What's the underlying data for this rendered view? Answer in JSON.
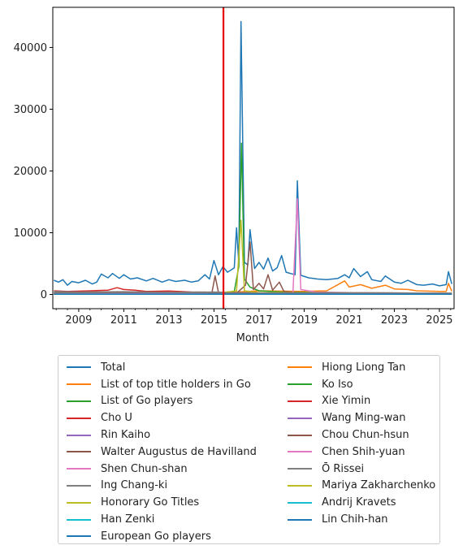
{
  "chart_data": {
    "type": "line",
    "xlabel": "Month",
    "ylabel": "",
    "title": "",
    "xlim": [
      2007.85,
      2025.65
    ],
    "ylim": [
      -2300,
      46500
    ],
    "x_ticks": [
      2009,
      2011,
      2013,
      2015,
      2017,
      2019,
      2021,
      2023,
      2025
    ],
    "y_ticks": [
      0,
      10000,
      20000,
      30000,
      40000
    ],
    "vline": {
      "x": 2015.42,
      "color": "#e60000"
    },
    "legend_placement": "below",
    "series": [
      {
        "name": "Total",
        "color": "#1f77b4",
        "points": [
          [
            2007.9,
            2300
          ],
          [
            2008.1,
            2000
          ],
          [
            2008.3,
            2400
          ],
          [
            2008.5,
            1500
          ],
          [
            2008.7,
            2100
          ],
          [
            2009.0,
            1900
          ],
          [
            2009.3,
            2300
          ],
          [
            2009.6,
            1700
          ],
          [
            2009.8,
            2000
          ],
          [
            2010.0,
            3300
          ],
          [
            2010.3,
            2700
          ],
          [
            2010.5,
            3400
          ],
          [
            2010.8,
            2600
          ],
          [
            2011.0,
            3200
          ],
          [
            2011.3,
            2500
          ],
          [
            2011.6,
            2700
          ],
          [
            2012.0,
            2200
          ],
          [
            2012.3,
            2600
          ],
          [
            2012.7,
            2000
          ],
          [
            2013.0,
            2400
          ],
          [
            2013.3,
            2100
          ],
          [
            2013.7,
            2300
          ],
          [
            2014.0,
            2000
          ],
          [
            2014.3,
            2200
          ],
          [
            2014.6,
            3200
          ],
          [
            2014.8,
            2500
          ],
          [
            2015.0,
            5500
          ],
          [
            2015.2,
            3200
          ],
          [
            2015.4,
            4500
          ],
          [
            2015.6,
            3600
          ],
          [
            2015.9,
            4300
          ],
          [
            2016.0,
            10800
          ],
          [
            2016.1,
            5000
          ],
          [
            2016.2,
            44200
          ],
          [
            2016.35,
            5200
          ],
          [
            2016.5,
            4800
          ],
          [
            2016.6,
            10500
          ],
          [
            2016.8,
            4200
          ],
          [
            2017.0,
            5200
          ],
          [
            2017.2,
            4100
          ],
          [
            2017.4,
            5900
          ],
          [
            2017.6,
            3800
          ],
          [
            2017.8,
            4300
          ],
          [
            2018.0,
            6300
          ],
          [
            2018.2,
            3600
          ],
          [
            2018.4,
            3400
          ],
          [
            2018.6,
            3200
          ],
          [
            2018.7,
            18400
          ],
          [
            2018.85,
            3100
          ],
          [
            2019.2,
            2700
          ],
          [
            2019.6,
            2500
          ],
          [
            2020.0,
            2400
          ],
          [
            2020.5,
            2600
          ],
          [
            2020.8,
            3200
          ],
          [
            2021.0,
            2700
          ],
          [
            2021.2,
            4200
          ],
          [
            2021.5,
            2900
          ],
          [
            2021.8,
            3700
          ],
          [
            2022.0,
            2400
          ],
          [
            2022.4,
            2100
          ],
          [
            2022.6,
            3000
          ],
          [
            2023.0,
            2000
          ],
          [
            2023.3,
            1800
          ],
          [
            2023.6,
            2300
          ],
          [
            2024.0,
            1600
          ],
          [
            2024.3,
            1500
          ],
          [
            2024.7,
            1700
          ],
          [
            2025.0,
            1400
          ],
          [
            2025.3,
            1600
          ],
          [
            2025.4,
            3700
          ],
          [
            2025.55,
            1700
          ]
        ]
      },
      {
        "name": "List of top title holders in Go",
        "color": "#ff7f0e",
        "points": [
          [
            2007.9,
            300
          ],
          [
            2009.0,
            250
          ],
          [
            2011.0,
            300
          ],
          [
            2013.0,
            250
          ],
          [
            2015.0,
            300
          ],
          [
            2016.0,
            400
          ],
          [
            2017.0,
            600
          ],
          [
            2019.0,
            500
          ],
          [
            2020.0,
            600
          ],
          [
            2020.8,
            2200
          ],
          [
            2021.0,
            1200
          ],
          [
            2021.5,
            1600
          ],
          [
            2022.0,
            1000
          ],
          [
            2022.6,
            1500
          ],
          [
            2023.0,
            900
          ],
          [
            2023.6,
            800
          ],
          [
            2024.0,
            600
          ],
          [
            2025.0,
            500
          ],
          [
            2025.3,
            500
          ],
          [
            2025.4,
            1800
          ],
          [
            2025.55,
            500
          ]
        ]
      },
      {
        "name": "List of Go players",
        "color": "#2ca02c",
        "points": [
          [
            2007.9,
            150
          ],
          [
            2012.0,
            150
          ],
          [
            2015.0,
            200
          ],
          [
            2015.9,
            500
          ],
          [
            2016.1,
            4500
          ],
          [
            2016.22,
            24500
          ],
          [
            2016.35,
            2500
          ],
          [
            2016.6,
            1200
          ],
          [
            2017.0,
            600
          ],
          [
            2018.0,
            400
          ],
          [
            2020.0,
            300
          ],
          [
            2025.55,
            200
          ]
        ]
      },
      {
        "name": "Cho U",
        "color": "#d62728",
        "points": [
          [
            2007.9,
            600
          ],
          [
            2008.5,
            500
          ],
          [
            2009.5,
            600
          ],
          [
            2010.3,
            700
          ],
          [
            2010.7,
            1100
          ],
          [
            2011.0,
            800
          ],
          [
            2011.5,
            700
          ],
          [
            2012.0,
            500
          ],
          [
            2013.0,
            550
          ],
          [
            2014.0,
            400
          ],
          [
            2015.0,
            350
          ],
          [
            2016.0,
            300
          ],
          [
            2018.0,
            250
          ],
          [
            2020.0,
            200
          ],
          [
            2025.55,
            150
          ]
        ]
      },
      {
        "name": "Rin Kaiho",
        "color": "#9467bd",
        "points": [
          [
            2007.9,
            300
          ],
          [
            2010.0,
            250
          ],
          [
            2012.0,
            280
          ],
          [
            2014.0,
            250
          ],
          [
            2015.0,
            300
          ],
          [
            2016.0,
            250
          ],
          [
            2018.0,
            200
          ],
          [
            2025.55,
            150
          ]
        ]
      },
      {
        "name": "Walter Augustus de Havilland",
        "color": "#8c564b",
        "points": [
          [
            2007.9,
            100
          ],
          [
            2014.9,
            150
          ],
          [
            2015.05,
            3000
          ],
          [
            2015.2,
            300
          ],
          [
            2016.0,
            200
          ],
          [
            2016.4,
            1500
          ],
          [
            2016.6,
            8500
          ],
          [
            2016.75,
            800
          ],
          [
            2017.0,
            1800
          ],
          [
            2017.2,
            900
          ],
          [
            2017.4,
            3200
          ],
          [
            2017.6,
            700
          ],
          [
            2017.9,
            2000
          ],
          [
            2018.1,
            500
          ],
          [
            2019.0,
            200
          ],
          [
            2025.55,
            100
          ]
        ]
      },
      {
        "name": "Shen Chun-shan",
        "color": "#e377c2",
        "points": [
          [
            2007.9,
            200
          ],
          [
            2012.0,
            200
          ],
          [
            2015.0,
            200
          ],
          [
            2018.5,
            250
          ],
          [
            2018.7,
            15500
          ],
          [
            2018.85,
            800
          ],
          [
            2019.5,
            400
          ],
          [
            2021.0,
            300
          ],
          [
            2025.55,
            200
          ]
        ]
      },
      {
        "name": "Ing Chang-ki",
        "color": "#7f7f7f",
        "points": [
          [
            2007.9,
            500
          ],
          [
            2009.0,
            400
          ],
          [
            2011.0,
            450
          ],
          [
            2013.0,
            350
          ],
          [
            2015.0,
            400
          ],
          [
            2016.0,
            300
          ],
          [
            2018.0,
            250
          ],
          [
            2020.0,
            300
          ],
          [
            2025.55,
            200
          ]
        ]
      },
      {
        "name": "Honorary Go Titles",
        "color": "#bcbd22",
        "points": [
          [
            2007.9,
            100
          ],
          [
            2015.0,
            100
          ],
          [
            2016.0,
            600
          ],
          [
            2016.2,
            12000
          ],
          [
            2016.35,
            600
          ],
          [
            2017.0,
            300
          ],
          [
            2025.55,
            100
          ]
        ]
      },
      {
        "name": "Han Zenki",
        "color": "#17becf",
        "points": [
          [
            2007.9,
            80
          ],
          [
            2025.55,
            80
          ]
        ]
      },
      {
        "name": "European Go players",
        "color": "#1f77b4",
        "points": [
          [
            2007.9,
            100
          ],
          [
            2025.55,
            100
          ]
        ]
      },
      {
        "name": "Hiong Liong Tan",
        "color": "#ff7f0e",
        "points": [
          [
            2007.9,
            60
          ],
          [
            2025.55,
            60
          ]
        ]
      },
      {
        "name": "Ko Iso",
        "color": "#2ca02c",
        "points": [
          [
            2007.9,
            50
          ],
          [
            2025.55,
            50
          ]
        ]
      },
      {
        "name": "Xie Yimin",
        "color": "#d62728",
        "points": [
          [
            2007.9,
            200
          ],
          [
            2012.0,
            300
          ],
          [
            2015.0,
            250
          ],
          [
            2025.55,
            150
          ]
        ]
      },
      {
        "name": "Wang Ming-wan",
        "color": "#9467bd",
        "points": [
          [
            2007.9,
            150
          ],
          [
            2025.55,
            120
          ]
        ]
      },
      {
        "name": "Chou Chun-hsun",
        "color": "#8c564b",
        "points": [
          [
            2007.9,
            300
          ],
          [
            2011.0,
            350
          ],
          [
            2014.0,
            300
          ],
          [
            2016.0,
            250
          ],
          [
            2025.55,
            150
          ]
        ]
      },
      {
        "name": "Chen Shih-yuan",
        "color": "#e377c2",
        "points": [
          [
            2007.9,
            100
          ],
          [
            2025.55,
            80
          ]
        ]
      },
      {
        "name": "Ō Rissei",
        "color": "#7f7f7f",
        "points": [
          [
            2007.9,
            250
          ],
          [
            2012.0,
            300
          ],
          [
            2016.0,
            250
          ],
          [
            2025.55,
            150
          ]
        ]
      },
      {
        "name": "Mariya Zakharchenko",
        "color": "#bcbd22",
        "points": [
          [
            2007.9,
            40
          ],
          [
            2025.55,
            40
          ]
        ]
      },
      {
        "name": "Andrij Kravets",
        "color": "#17becf",
        "points": [
          [
            2007.9,
            30
          ],
          [
            2025.55,
            30
          ]
        ]
      },
      {
        "name": "Lin Chih-han",
        "color": "#1f77b4",
        "points": [
          [
            2007.9,
            60
          ],
          [
            2025.55,
            60
          ]
        ]
      }
    ]
  }
}
